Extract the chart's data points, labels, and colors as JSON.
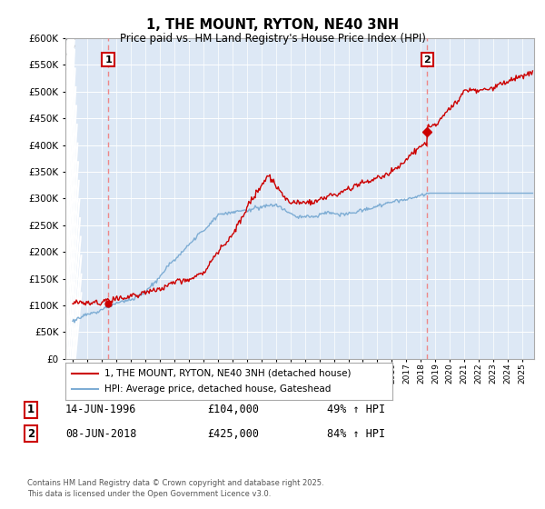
{
  "title": "1, THE MOUNT, RYTON, NE40 3NH",
  "subtitle": "Price paid vs. HM Land Registry's House Price Index (HPI)",
  "ylim": [
    0,
    600000
  ],
  "yticks": [
    0,
    50000,
    100000,
    150000,
    200000,
    250000,
    300000,
    350000,
    400000,
    450000,
    500000,
    550000,
    600000
  ],
  "legend_line1": "1, THE MOUNT, RYTON, NE40 3NH (detached house)",
  "legend_line2": "HPI: Average price, detached house, Gateshead",
  "annotation1_date": "14-JUN-1996",
  "annotation1_price": "£104,000",
  "annotation1_hpi": "49% ↑ HPI",
  "annotation2_date": "08-JUN-2018",
  "annotation2_price": "£425,000",
  "annotation2_hpi": "84% ↑ HPI",
  "sale_color": "#cc0000",
  "hpi_color": "#7eadd4",
  "vline_color": "#ee8888",
  "sale_marker_x1": 1996.45,
  "sale_marker_y1": 104000,
  "sale_marker_x2": 2018.44,
  "sale_marker_y2": 425000,
  "footnote": "Contains HM Land Registry data © Crown copyright and database right 2025.\nThis data is licensed under the Open Government Licence v3.0.",
  "background_color": "#ffffff",
  "plot_bg_color": "#dde8f5",
  "xlim_min": 1993.5,
  "xlim_max": 2025.8
}
